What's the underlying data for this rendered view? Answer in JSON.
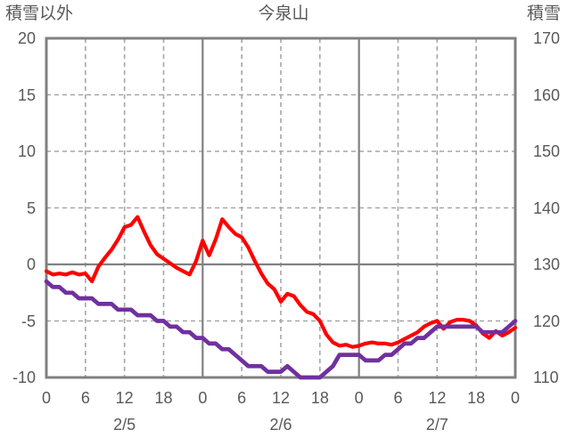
{
  "header": {
    "left_axis_title": "積雪以外",
    "chart_title": "今泉山",
    "right_axis_title": "積雪"
  },
  "colors": {
    "background": "#ffffff",
    "text": "#595959",
    "axis_line": "#808080",
    "gridline_dashed": "#a6a6a6",
    "series_red": "#ff0000",
    "series_purple": "#7030a0"
  },
  "chart_data": {
    "type": "line",
    "title": "今泉山",
    "legend": "none",
    "left_axis": {
      "title": "積雪以外",
      "min": -10,
      "max": 20,
      "tick_step": 5,
      "tick_labels": [
        "20",
        "15",
        "10",
        "5",
        "0",
        "-5",
        "-10"
      ]
    },
    "right_axis": {
      "title": "積雪",
      "min": 110,
      "max": 170,
      "tick_step": 10,
      "tick_labels": [
        "170",
        "160",
        "150",
        "140",
        "130",
        "120",
        "110"
      ]
    },
    "x_axis": {
      "unit": "hour",
      "start_hour": 0,
      "end_hour": 72,
      "tick_interval_hours": 6,
      "tick_labels": [
        "0",
        "6",
        "12",
        "18",
        "0",
        "6",
        "12",
        "18",
        "0",
        "6",
        "12",
        "18",
        "0"
      ],
      "day_labels": [
        "2/5",
        "2/6",
        "2/7"
      ],
      "day_label_center_hours": [
        12,
        36,
        60
      ]
    },
    "grid": {
      "h_dashed_values": [
        15,
        10,
        5,
        -5
      ],
      "h_solid_values": [
        0
      ],
      "v_dashed_hours": [
        6,
        12,
        18,
        30,
        36,
        42,
        54,
        60,
        66
      ],
      "v_solid_hours": [
        24,
        48
      ]
    },
    "series": [
      {
        "id": "other-than-snow",
        "label": "積雪以外",
        "axis": "left",
        "color": "#ff0000",
        "x_step_hours": 1,
        "values": [
          -0.6,
          -0.9,
          -0.8,
          -0.9,
          -0.7,
          -0.9,
          -0.8,
          -1.5,
          -0.2,
          0.6,
          1.3,
          2.2,
          3.3,
          3.5,
          4.2,
          2.9,
          1.7,
          0.9,
          0.5,
          0.1,
          -0.3,
          -0.6,
          -0.9,
          0.3,
          2.1,
          0.8,
          2.2,
          4.0,
          3.3,
          2.7,
          2.4,
          1.5,
          0.3,
          -0.8,
          -1.7,
          -2.2,
          -3.3,
          -2.6,
          -2.8,
          -3.6,
          -4.2,
          -4.4,
          -5.0,
          -6.2,
          -6.9,
          -7.2,
          -7.1,
          -7.3,
          -7.2,
          -7.0,
          -6.9,
          -7.0,
          -7.0,
          -7.1,
          -6.9,
          -6.6,
          -6.3,
          -6.0,
          -5.5,
          -5.2,
          -5.0,
          -5.7,
          -5.1,
          -4.9,
          -4.9,
          -5.0,
          -5.4,
          -6.1,
          -6.5,
          -5.9,
          -6.3,
          -6.0,
          -5.6
        ]
      },
      {
        "id": "snow-depth",
        "label": "積雪",
        "axis": "right",
        "color": "#7030a0",
        "x_step_hours": 1,
        "values": [
          127,
          126,
          126,
          125,
          125,
          124,
          124,
          124,
          123,
          123,
          123,
          122,
          122,
          122,
          121,
          121,
          121,
          120,
          120,
          119,
          119,
          118,
          118,
          117,
          117,
          116,
          116,
          115,
          115,
          114,
          113,
          112,
          112,
          112,
          111,
          111,
          111,
          112,
          111,
          110,
          110,
          110,
          110,
          111,
          112,
          114,
          114,
          114,
          114,
          113,
          113,
          113,
          114,
          114,
          115,
          116,
          116,
          117,
          117,
          118,
          119,
          119,
          119,
          119,
          119,
          119,
          119,
          118,
          118,
          118,
          118,
          119,
          120
        ]
      }
    ]
  }
}
